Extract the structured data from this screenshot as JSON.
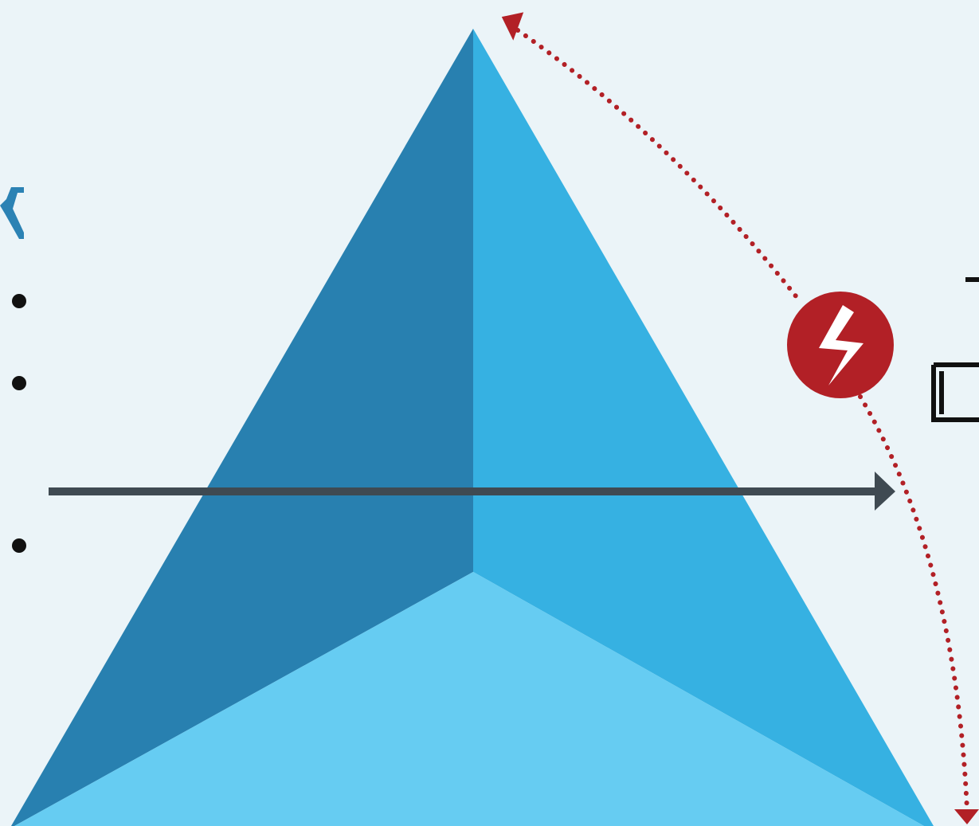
{
  "colors": {
    "background": "#ebf4f8",
    "pyramid_left_face": "#2880b0",
    "pyramid_right_face": "#36b1e2",
    "pyramid_base_face": "#66ccf2",
    "arrow_dark": "#3f4a52",
    "alert_red": "#b22026",
    "accent_blue": "#2b82b4",
    "bullet": "#111111"
  },
  "left_panel": {
    "heading_glyph": "ᛕ",
    "bullets": [
      "",
      "",
      ""
    ]
  },
  "right_panel": {
    "line_1": "ד",
    "line_2": "םי"
  },
  "icons": {
    "alert": "lightning-bolt-icon",
    "arrow": "arrow-right-icon"
  }
}
